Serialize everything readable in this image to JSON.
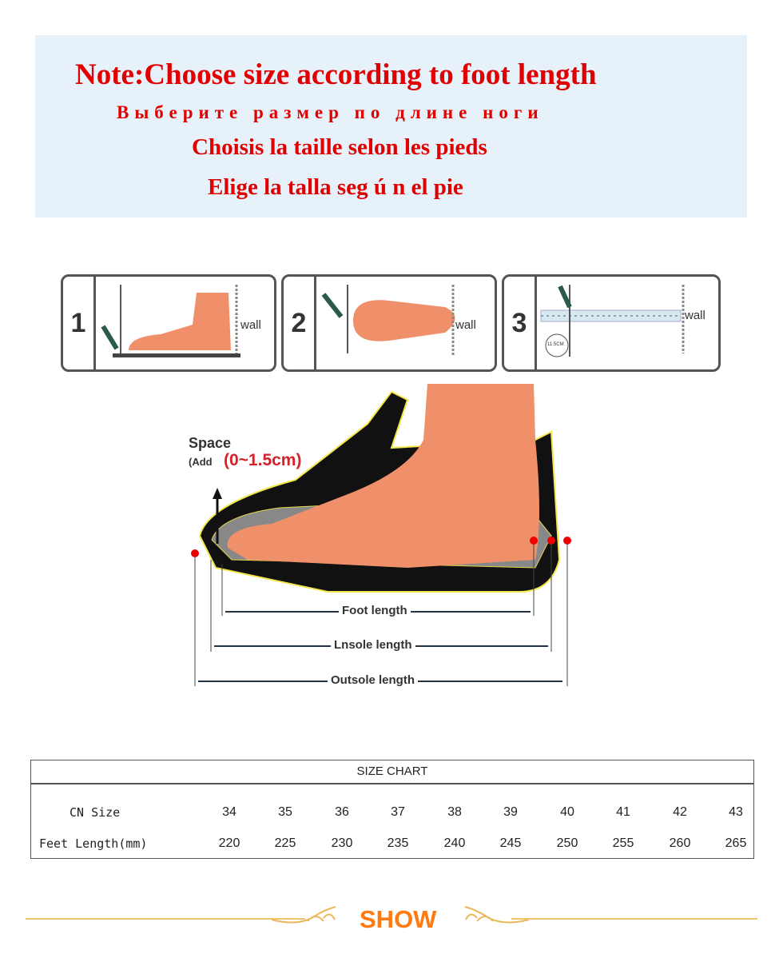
{
  "note": {
    "english": "Note:Choose size according to foot length",
    "russian": "Выберите размер по длине ноги",
    "french": "Choisis la taille selon les pieds",
    "spanish": "Elige la talla seg ú n el pie"
  },
  "steps": [
    {
      "number": "1",
      "label": "wall"
    },
    {
      "number": "2",
      "label": "wall"
    },
    {
      "number": "3",
      "label": "wall",
      "ruler_badge": "11.5CM"
    }
  ],
  "diagram": {
    "space_title": "Space",
    "space_add": "(Add",
    "space_range": "(0~1.5cm)",
    "foot_length": "Foot length",
    "insole_length": "Lnsole length",
    "outsole_length": "Outsole length"
  },
  "size_chart": {
    "title": "SIZE CHART",
    "rows": [
      {
        "header": "CN Size",
        "values": [
          "34",
          "35",
          "36",
          "37",
          "38",
          "39",
          "40",
          "41",
          "42",
          "43"
        ]
      },
      {
        "header": "Feet Length(mm)",
        "values": [
          "220",
          "225",
          "230",
          "235",
          "240",
          "245",
          "250",
          "255",
          "260",
          "265"
        ]
      }
    ]
  },
  "footer": {
    "label": "SHOW"
  },
  "colors": {
    "note_text": "#e00000",
    "note_bg": "#e6f1fa",
    "foot": "#f0906a",
    "show": "#ff7a10",
    "ornament": "#f1c36a"
  }
}
